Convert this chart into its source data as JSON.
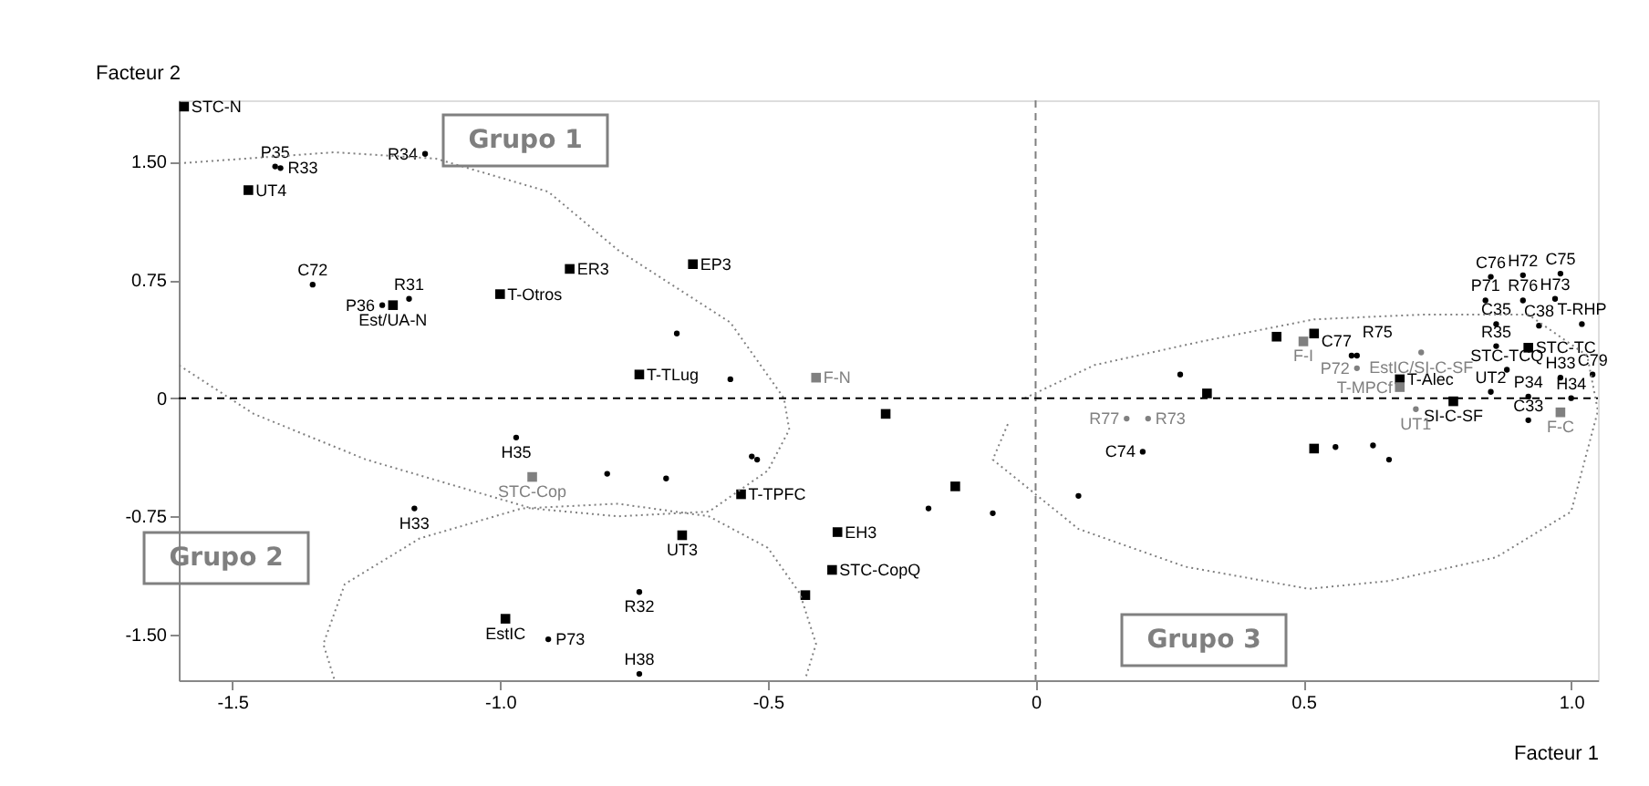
{
  "chart_data": {
    "type": "scatter",
    "xlabel": "Facteur 1",
    "ylabel": "Facteur 2",
    "xlim": [
      -1.6,
      1.05
    ],
    "ylim": [
      -1.79,
      1.89
    ],
    "xticks": [
      -1.5,
      {
        "value": -1,
        "label": "-1.0"
      },
      -0.5,
      0,
      0.5,
      {
        "value": 1,
        "label": "1.0"
      }
    ],
    "yticks": [
      {
        "value": 1.5,
        "label": "1.50"
      },
      0.75,
      0,
      -0.75,
      {
        "value": -1.5,
        "label": "-1.50"
      }
    ],
    "grid": false,
    "ref_lines": [
      {
        "axis": "x",
        "value": 0,
        "line_style": "dashed",
        "color": "#808080"
      },
      {
        "axis": "y",
        "value": 0,
        "line_style": "dashed",
        "color": "#000000"
      }
    ],
    "series": [
      {
        "type": "scatter",
        "marker": "square",
        "color": "#000000",
        "x": [
          -1.59,
          -1.47,
          -1.2,
          -0.28,
          -0.66,
          -0.38,
          -0.43,
          -0.99,
          0.78,
          0.92
        ],
        "values": [
          1.85,
          1.32,
          0.59,
          -0.1,
          -0.87,
          -1.09,
          -1.25,
          -1.4,
          -0.02,
          0.32
        ],
        "value_labels": [
          "STC-N",
          "UT4",
          "Est/UA-N",
          null,
          "UT3",
          "STC-CopQ",
          null,
          "EstIC",
          "SI-C-SF",
          "STC-TC"
        ]
      },
      {
        "type": "scatter",
        "marker": "square",
        "color": "#000000",
        "x": [
          -1.0,
          -0.87,
          -0.64,
          -0.74,
          -0.55,
          -0.15,
          -0.37,
          0.45,
          0.52,
          0.32,
          0.68,
          0.52
        ],
        "values": [
          0.66,
          0.82,
          0.85,
          0.15,
          -0.61,
          -0.56,
          -0.85,
          0.39,
          0.41,
          0.03,
          0.12,
          -0.32
        ],
        "value_labels": [
          "T-Otros",
          "ER3",
          "EP3",
          "T-TLug",
          "T-TPFC",
          null,
          "EH3",
          null,
          null,
          null,
          "T-Alec",
          null
        ]
      },
      {
        "type": "scatter",
        "marker": "square",
        "color": "#808080",
        "x": [
          -0.41,
          -0.94,
          0.5,
          0.68,
          0.98
        ],
        "values": [
          0.13,
          -0.5,
          0.36,
          0.07,
          -0.09
        ],
        "value_labels": [
          "F-N",
          "STC-Cop",
          "F-I",
          "T-MPCf",
          "F-C"
        ]
      },
      {
        "type": "scatter",
        "marker": "circle",
        "color": "#000000",
        "x": [
          -1.42,
          -1.41,
          -1.14,
          -1.35,
          -1.22,
          -1.17,
          -0.67,
          -0.57,
          -0.53,
          -0.52,
          -0.8,
          -0.69,
          -0.2,
          -0.08,
          0.08,
          -0.97,
          -1.16,
          -0.74,
          -0.91,
          -0.74,
          0.59,
          0.6,
          0.27,
          0.2,
          0.56,
          0.63,
          0.66
        ],
        "values": [
          1.47,
          1.46,
          1.55,
          0.72,
          0.59,
          0.63,
          0.41,
          0.12,
          -0.37,
          -0.39,
          -0.48,
          -0.51,
          -0.7,
          -0.73,
          -0.62,
          -0.25,
          -0.7,
          -1.23,
          -1.53,
          -1.75,
          0.27,
          0.27,
          0.15,
          -0.34,
          -0.31,
          -0.3,
          -0.39
        ],
        "value_labels": [
          "P35",
          "R33",
          "R34",
          "C72",
          "P36",
          "R31",
          null,
          null,
          null,
          null,
          null,
          null,
          null,
          null,
          null,
          "H35",
          "H33",
          "R32",
          "P73",
          "H38",
          "C77",
          "R75",
          null,
          "C74",
          null,
          null,
          null
        ]
      },
      {
        "type": "scatter",
        "marker": "circle",
        "color": "#808080",
        "x": [
          0.6,
          0.17
        ],
        "values": [
          0.19,
          -0.13
        ],
        "value_labels": [
          "P72",
          "R77"
        ]
      },
      {
        "type": "scatter",
        "marker": "circle",
        "color": "#000000",
        "x": [
          0.85,
          0.91,
          0.98,
          0.84,
          0.91,
          0.97,
          0.86,
          0.94,
          1.02,
          0.86,
          0.88,
          0.98,
          1.04,
          0.85,
          0.92,
          1.0,
          0.92
        ],
        "values": [
          0.77,
          0.78,
          0.79,
          0.62,
          0.62,
          0.63,
          0.47,
          0.46,
          0.47,
          0.33,
          0.18,
          0.13,
          0.15,
          0.04,
          0.01,
          0.0,
          -0.14
        ],
        "value_labels": [
          "C76",
          "H72",
          "C75",
          "P71",
          "R76",
          "H73",
          "C35",
          "C38",
          "T-RHP",
          "R35",
          "STC-TCQ",
          "H33",
          "C79",
          "UT2",
          "P34",
          "H34",
          "C33"
        ]
      },
      {
        "type": "scatter",
        "marker": "circle",
        "color": "#808080",
        "x": [
          0.72,
          0.71,
          0.21
        ],
        "values": [
          0.29,
          -0.07,
          -0.13
        ],
        "value_labels": [
          "EstIC/SI-C-SF",
          "UT1",
          "R73"
        ]
      },
      {
        "type": "line",
        "line_style": "dotted",
        "color": "#808080",
        "x": [
          -1.6,
          -1.31,
          -1.12,
          -0.91,
          -0.78,
          -0.57,
          -0.47,
          -0.46,
          -0.5,
          -0.61,
          -0.78,
          -0.94,
          -1.25,
          -1.46,
          -1.6
        ],
        "values": [
          1.49,
          1.56,
          1.52,
          1.31,
          0.94,
          0.48,
          0.0,
          -0.2,
          -0.46,
          -0.72,
          -0.75,
          -0.7,
          -0.39,
          -0.1,
          0.21
        ]
      },
      {
        "type": "line",
        "line_style": "dotted",
        "color": "#808080",
        "x": [
          -1.31,
          -1.33,
          -1.29,
          -1.15,
          -0.96,
          -0.78,
          -0.61,
          -0.5,
          -0.44,
          -0.41,
          -0.43
        ],
        "values": [
          -1.78,
          -1.56,
          -1.18,
          -0.89,
          -0.7,
          -0.67,
          -0.75,
          -0.95,
          -1.24,
          -1.56,
          -1.78
        ]
      },
      {
        "type": "line",
        "line_style": "dotted",
        "color": "#808080",
        "x": [
          -0.02,
          0.11,
          0.31,
          0.52,
          0.72,
          0.92,
          1.03,
          1.05,
          1.0,
          0.86,
          0.66,
          0.51,
          0.28,
          0.08,
          -0.08,
          -0.05
        ],
        "values": [
          0.0,
          0.21,
          0.36,
          0.5,
          0.53,
          0.53,
          0.27,
          -0.08,
          -0.72,
          -1.01,
          -1.16,
          -1.21,
          -1.07,
          -0.83,
          -0.39,
          -0.15
        ]
      }
    ],
    "annotations": [
      "Grupo 1",
      "Grupo 2",
      "Grupo 3"
    ]
  }
}
